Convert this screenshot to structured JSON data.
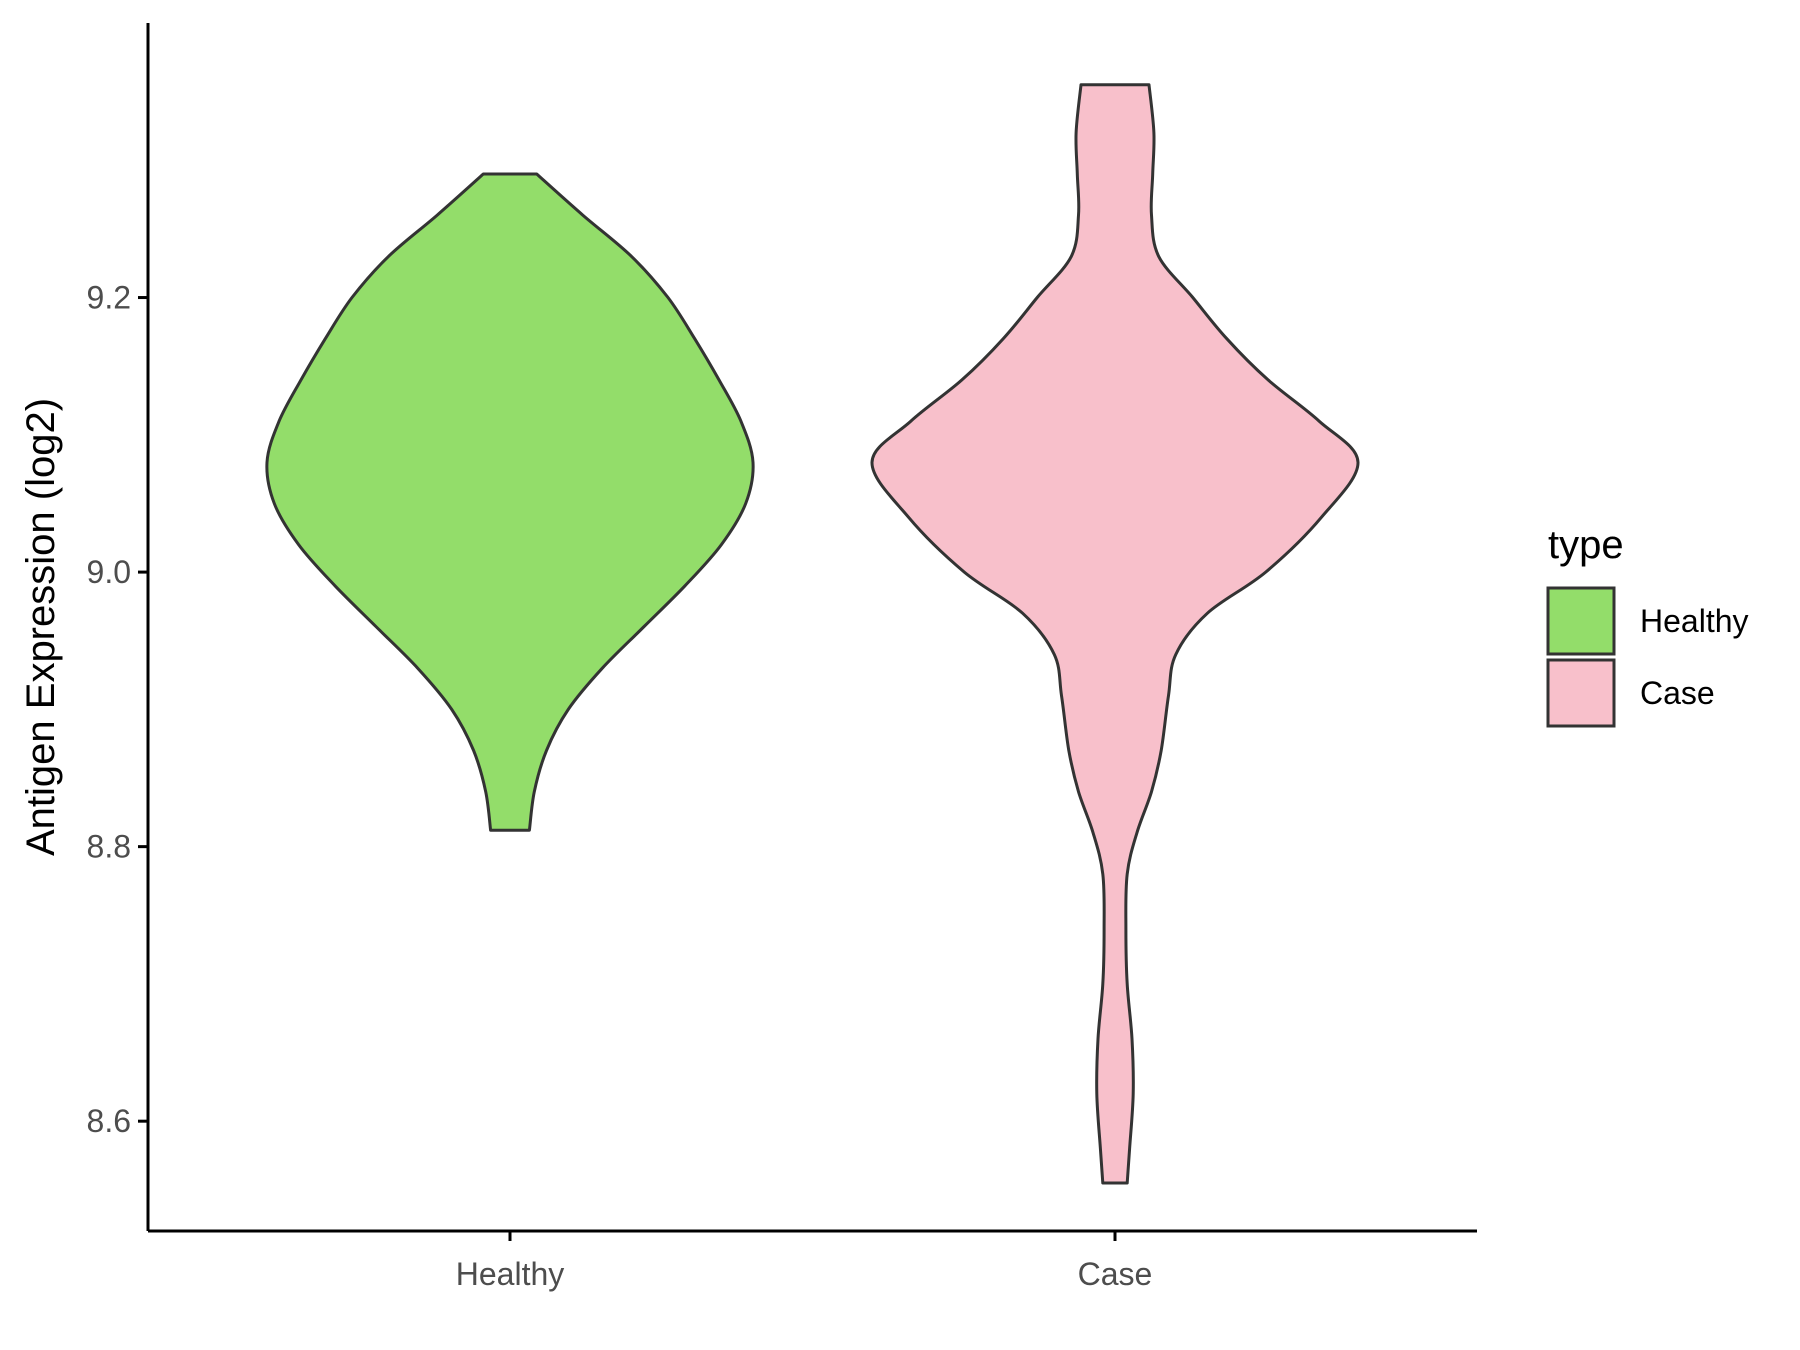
{
  "chart_data": {
    "type": "violin",
    "title": "",
    "xlabel": "",
    "ylabel": "Antigen Expression (log2)",
    "ylim": [
      8.52,
      9.4
    ],
    "yticks": [
      8.6,
      8.8,
      9.0,
      9.2
    ],
    "ytick_labels": [
      "8.6",
      "8.8",
      "9.0",
      "9.2"
    ],
    "categories": [
      "Healthy",
      "Case"
    ],
    "grid": false,
    "legend": {
      "title": "type",
      "position": "right",
      "entries": [
        {
          "label": "Healthy",
          "color": "#93DD6A"
        },
        {
          "label": "Case",
          "color": "#F8C0CB"
        }
      ]
    },
    "series": [
      {
        "category": "Healthy",
        "color": "#93DD6A",
        "min": 8.812,
        "max": 9.29,
        "density": [
          [
            8.812,
            0.08
          ],
          [
            8.84,
            0.1
          ],
          [
            8.87,
            0.15
          ],
          [
            8.9,
            0.24
          ],
          [
            8.93,
            0.38
          ],
          [
            8.96,
            0.55
          ],
          [
            8.99,
            0.72
          ],
          [
            9.02,
            0.87
          ],
          [
            9.05,
            0.97
          ],
          [
            9.08,
            1.0
          ],
          [
            9.11,
            0.95
          ],
          [
            9.14,
            0.86
          ],
          [
            9.17,
            0.76
          ],
          [
            9.2,
            0.65
          ],
          [
            9.23,
            0.5
          ],
          [
            9.26,
            0.3
          ],
          [
            9.29,
            0.11
          ]
        ]
      },
      {
        "category": "Case",
        "color": "#F8C0CB",
        "min": 8.555,
        "max": 9.355,
        "density": [
          [
            8.555,
            0.05
          ],
          [
            8.58,
            0.06
          ],
          [
            8.62,
            0.075
          ],
          [
            8.66,
            0.07
          ],
          [
            8.7,
            0.05
          ],
          [
            8.74,
            0.045
          ],
          [
            8.78,
            0.05
          ],
          [
            8.81,
            0.09
          ],
          [
            8.84,
            0.15
          ],
          [
            8.87,
            0.19
          ],
          [
            8.91,
            0.22
          ],
          [
            8.94,
            0.25
          ],
          [
            8.97,
            0.38
          ],
          [
            9.0,
            0.62
          ],
          [
            9.04,
            0.85
          ],
          [
            9.08,
            1.0
          ],
          [
            9.11,
            0.84
          ],
          [
            9.14,
            0.63
          ],
          [
            9.17,
            0.46
          ],
          [
            9.2,
            0.32
          ],
          [
            9.23,
            0.18
          ],
          [
            9.26,
            0.15
          ],
          [
            9.29,
            0.155
          ],
          [
            9.32,
            0.16
          ],
          [
            9.355,
            0.14
          ]
        ]
      }
    ]
  }
}
